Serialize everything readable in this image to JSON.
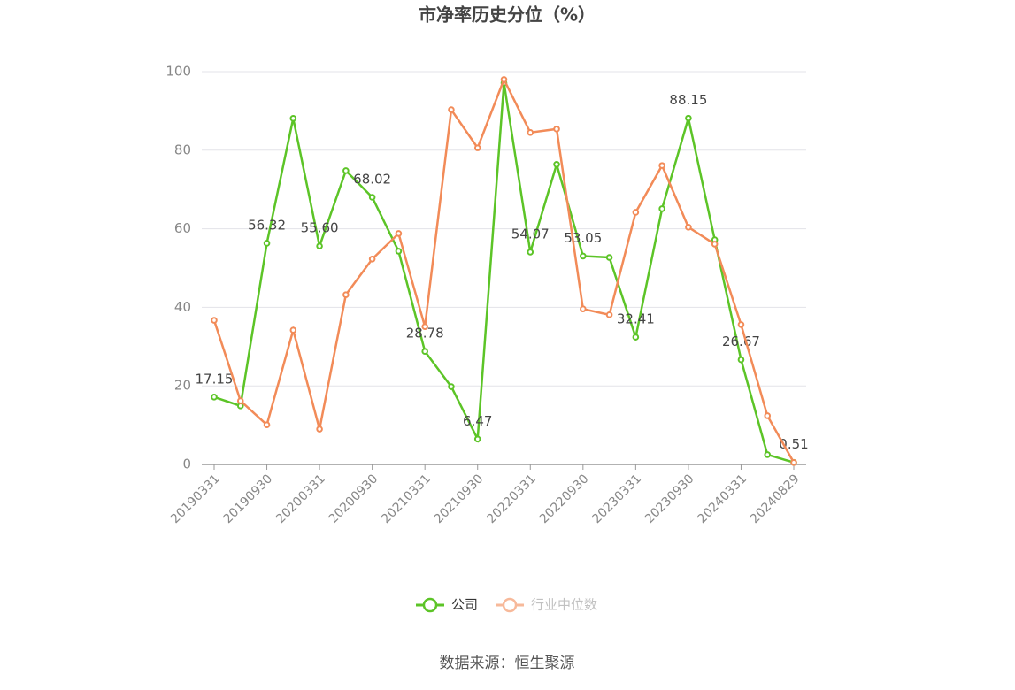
{
  "chart_data": {
    "type": "line",
    "title": "市净率历史分位（%）",
    "categories": [
      "20190331",
      null,
      "20190930",
      null,
      "20200331",
      null,
      "20200930",
      null,
      "20210331",
      null,
      "20210930",
      null,
      "20220331",
      null,
      "20220930",
      null,
      "20230331",
      null,
      "20230930",
      null,
      "20240331",
      null,
      "20240829"
    ],
    "series": [
      {
        "name": "公司",
        "color": "#5cc427",
        "values": [
          17.15,
          14.9,
          56.32,
          88.1,
          55.6,
          74.8,
          68.02,
          54.3,
          28.78,
          19.8,
          6.47,
          97.1,
          54.07,
          76.4,
          53.05,
          52.7,
          32.41,
          65.1,
          88.15,
          57.2,
          26.67,
          2.5,
          0.51
        ],
        "value_labels": [
          "17.15",
          null,
          "56.32",
          null,
          "55.60",
          null,
          "68.02",
          null,
          "28.78",
          null,
          "6.47",
          null,
          "54.07",
          null,
          "53.05",
          null,
          "32.41",
          null,
          "88.15",
          null,
          "26.67",
          null,
          "0.51"
        ]
      },
      {
        "name": "行业中位数",
        "color": "#f28b58",
        "values": [
          36.7,
          16.2,
          10.1,
          34.2,
          9.0,
          43.2,
          52.3,
          58.8,
          35.1,
          90.3,
          80.6,
          98.0,
          84.5,
          85.4,
          39.6,
          38.1,
          64.2,
          76.1,
          60.4,
          56.1,
          35.6,
          12.4,
          0.5
        ]
      }
    ],
    "ylim": [
      0,
      100
    ],
    "yticks": [
      0,
      20,
      40,
      60,
      80,
      100
    ],
    "grid": true,
    "source": "数据来源：恒生聚源"
  }
}
